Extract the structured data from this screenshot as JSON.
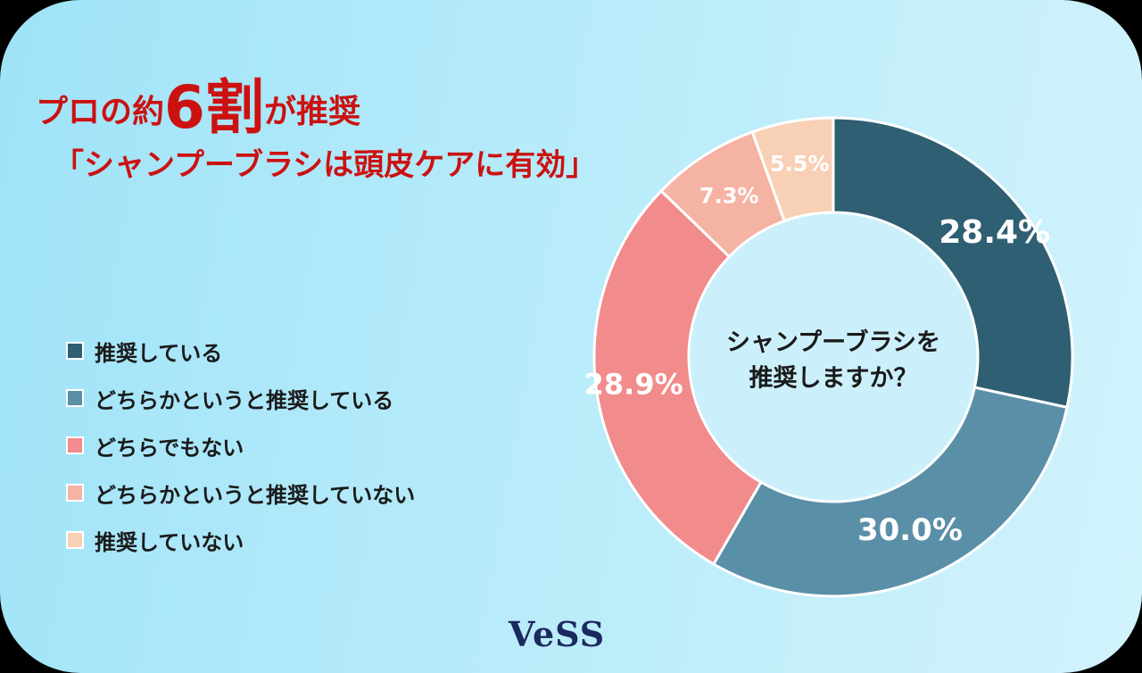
{
  "title": {
    "prefix": "プロの約",
    "highlight": "6割",
    "suffix": "が推奨"
  },
  "subtitle": "「シャンプーブラシは頭皮ケアに有効」",
  "logo": "VeSS",
  "chart_data": {
    "type": "pie",
    "style": "donut",
    "center_label": [
      "シャンプーブラシを",
      "推奨しますか？"
    ],
    "legend_placement": "left",
    "categories": [
      "推奨している",
      "どちらかというと推奨している",
      "どちらでもない",
      "どちらかというと推奨していない",
      "推奨していない"
    ],
    "values": [
      28.4,
      30.0,
      28.9,
      7.3,
      5.5
    ],
    "data_labels": [
      "28.4%",
      "30.0%",
      "28.9%",
      "7.3%",
      "5.5%"
    ],
    "colors": [
      "#2f5f73",
      "#5a8fa8",
      "#f28b8b",
      "#f5b3a3",
      "#f8d0b5"
    ]
  }
}
